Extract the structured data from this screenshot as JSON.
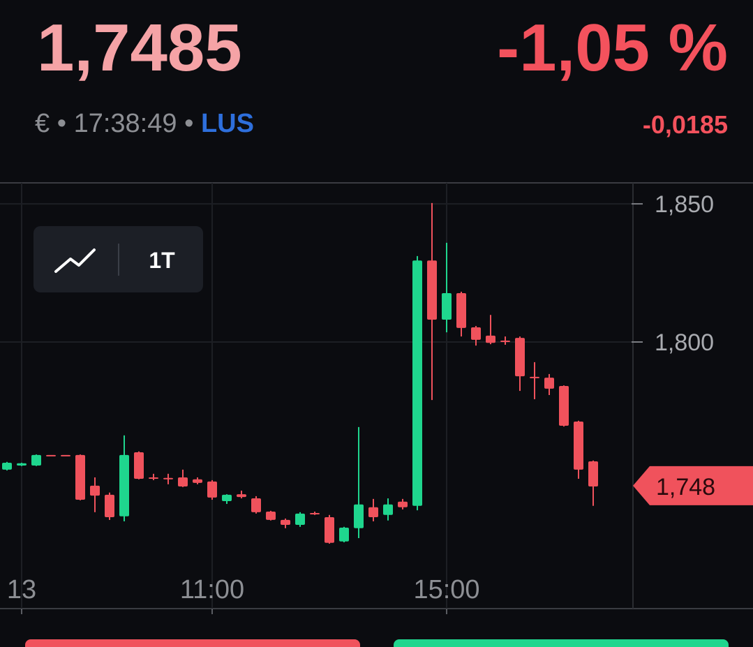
{
  "header": {
    "price": "1,7485",
    "change_percent": "-1,05 %",
    "currency": "€",
    "separator": "•",
    "time": "17:38:49",
    "exchange": "LUS",
    "change_absolute": "-0,0185"
  },
  "toolbar": {
    "interval": "1T"
  },
  "chart_data": {
    "type": "candlestick",
    "categories": [
      null,
      "13",
      null,
      null,
      null,
      null,
      null,
      null,
      null,
      null,
      null,
      null,
      null,
      null,
      "11:00",
      null,
      null,
      null,
      null,
      null,
      null,
      null,
      null,
      null,
      null,
      null,
      null,
      null,
      null,
      null,
      "15:00",
      null,
      null,
      null,
      null,
      null,
      null,
      null,
      null,
      null,
      null
    ],
    "open": [
      1.7538,
      1.7553,
      1.7553,
      1.7591,
      1.7591,
      1.7591,
      1.748,
      1.7447,
      1.7369,
      1.7601,
      1.751,
      1.7508,
      1.751,
      1.7503,
      1.7495,
      1.7424,
      1.7449,
      1.7434,
      1.7386,
      1.7356,
      1.7338,
      1.7381,
      1.7366,
      1.7278,
      1.7326,
      1.7402,
      1.7374,
      1.7422,
      1.7407,
      1.8295,
      1.8081,
      1.8177,
      1.8053,
      1.8023,
      1.8005,
      1.8015,
      1.7874,
      1.7871,
      1.7841,
      1.7712,
      1.7568
    ],
    "high": [
      1.7566,
      1.7563,
      1.7593,
      1.7591,
      1.7591,
      1.7593,
      1.751,
      1.7455,
      1.7662,
      1.7604,
      1.7523,
      1.7523,
      1.7538,
      1.751,
      1.75,
      1.7449,
      1.7462,
      1.7442,
      1.7389,
      1.7361,
      1.7384,
      1.7386,
      1.7374,
      1.7331,
      1.7692,
      1.7432,
      1.7434,
      1.7432,
      1.8311,
      1.8503,
      1.8359,
      1.8182,
      1.8058,
      1.8098,
      1.802,
      1.802,
      1.7927,
      1.7884,
      1.7843,
      1.7715,
      1.7571
    ],
    "low": [
      1.7535,
      1.7551,
      1.7551,
      1.7591,
      1.7591,
      1.7427,
      1.7384,
      1.7356,
      1.7351,
      1.7503,
      1.75,
      1.7485,
      1.7475,
      1.7485,
      1.7429,
      1.7414,
      1.7434,
      1.7379,
      1.7354,
      1.7326,
      1.7331,
      1.7374,
      1.727,
      1.7275,
      1.729,
      1.7351,
      1.7354,
      1.7394,
      1.7391,
      1.779,
      1.8035,
      1.802,
      1.7987,
      1.7992,
      1.799,
      1.7823,
      1.7793,
      1.7808,
      1.7694,
      1.7505,
      1.7407
    ],
    "close": [
      1.7563,
      1.7561,
      1.7591,
      1.7591,
      1.7591,
      1.7429,
      1.7444,
      1.7366,
      1.7591,
      1.7505,
      1.7508,
      1.7505,
      1.7477,
      1.749,
      1.7437,
      1.7447,
      1.7439,
      1.7384,
      1.7356,
      1.7338,
      1.7379,
      1.7376,
      1.7273,
      1.7328,
      1.7412,
      1.7366,
      1.7412,
      1.7402,
      1.8295,
      1.8081,
      1.8177,
      1.8051,
      1.8008,
      1.7997,
      1.8,
      1.7876,
      1.7871,
      1.7831,
      1.7697,
      1.7538,
      1.7477
    ],
    "up_color": "#1fd68e",
    "down_color": "#f0525c",
    "ylim": [
      1.7035,
      1.8576
    ],
    "yticks": [
      {
        "value": 1.85,
        "label": "1,850"
      },
      {
        "value": 1.8,
        "label": "1,800"
      }
    ],
    "last_price": {
      "value": 1.748,
      "label": "1,748"
    },
    "grid": true
  }
}
